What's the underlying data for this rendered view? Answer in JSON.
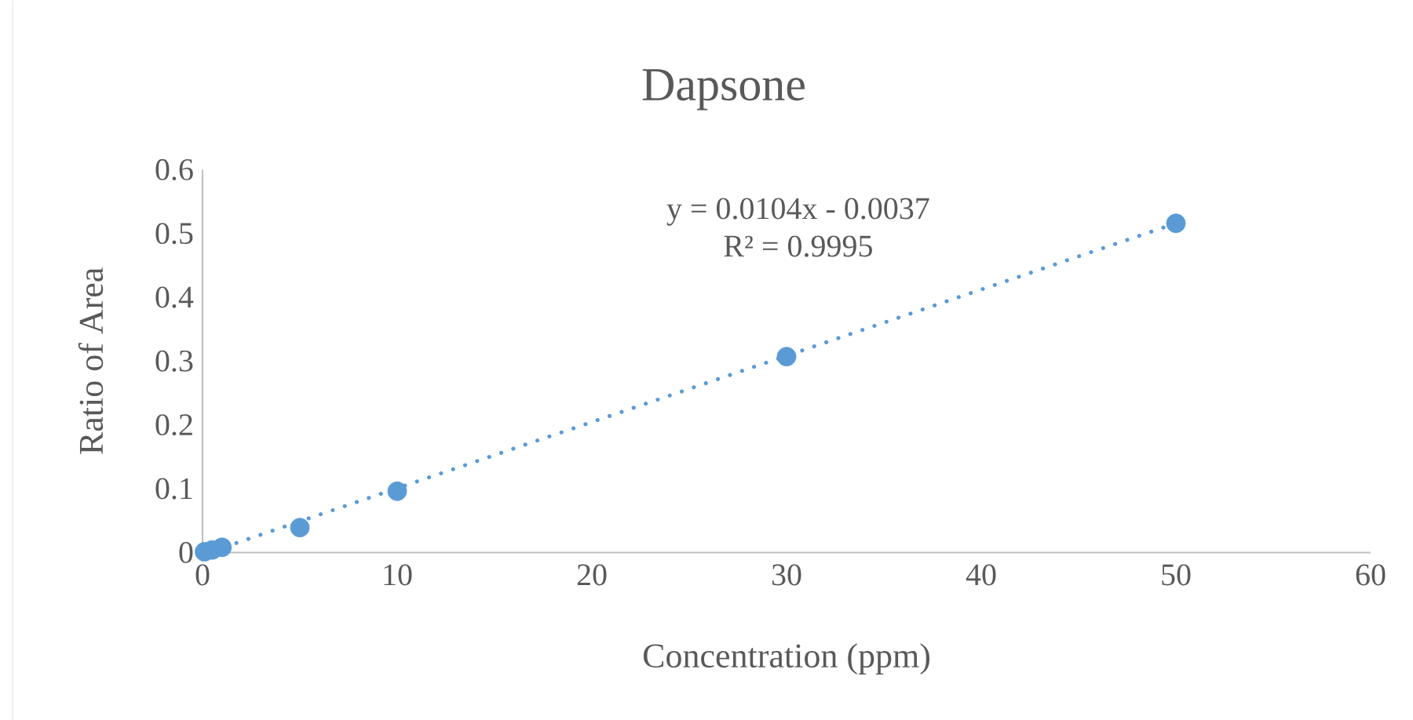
{
  "chart_data": {
    "type": "scatter",
    "title": "Dapsone",
    "xlabel": "Concentration (ppm)",
    "ylabel": "Ratio of Area",
    "series": [
      {
        "color": "#5b9bd5",
        "marker": "circle",
        "x": [
          0.1,
          0.5,
          1,
          5,
          10,
          30,
          50
        ],
        "values": [
          0.001,
          0.004,
          0.008,
          0.039,
          0.096,
          0.307,
          0.516
        ]
      },
      {
        "type": "line",
        "color": "#5b9bd5",
        "line_style": "dotted",
        "marker": "none",
        "x": [
          0.5,
          50
        ],
        "values": [
          0.002,
          0.516
        ]
      }
    ],
    "xlim": [
      0,
      60
    ],
    "xticks": [
      0,
      10,
      20,
      30,
      40,
      50,
      60
    ],
    "ylim": [
      0,
      0.6
    ],
    "yticks": [
      0,
      0.1,
      0.2,
      0.3,
      0.4,
      0.5,
      0.6
    ],
    "grid": false,
    "annotations": [
      "y = 0.0104x - 0.0037",
      "R² = 0.9995"
    ]
  }
}
